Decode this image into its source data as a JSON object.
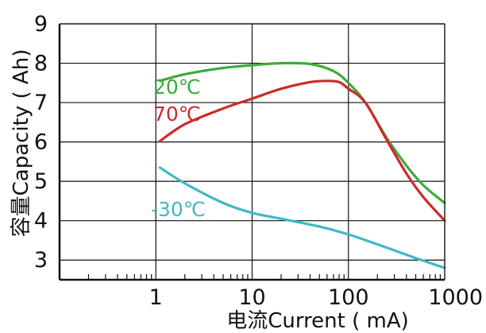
{
  "chart_data": {
    "type": "line",
    "title": "",
    "xlabel": "电流Current ( mA)",
    "ylabel": "容量Capacity ( Ah)",
    "xscale": "log",
    "xlim": [
      0.1,
      1000
    ],
    "ylim": [
      2.5,
      9
    ],
    "x_tick_values": [
      1,
      10,
      100,
      1000
    ],
    "x_tick_labels": [
      "1",
      "10",
      "100",
      "1000"
    ],
    "y_ticks": [
      3,
      4,
      5,
      6,
      7,
      8,
      9
    ],
    "grid": true,
    "series": [
      {
        "name": "20℃",
        "color": "#3daa3a",
        "x": [
          1.1,
          2,
          5,
          10,
          20,
          40,
          70,
          100,
          150,
          250,
          400,
          600,
          1000
        ],
        "y": [
          7.55,
          7.72,
          7.88,
          7.95,
          8.0,
          7.98,
          7.8,
          7.5,
          7.0,
          6.1,
          5.4,
          4.9,
          4.45
        ]
      },
      {
        "name": "70℃",
        "color": "#cc2a2a",
        "x": [
          1.1,
          2,
          5,
          10,
          20,
          40,
          60,
          80,
          100,
          150,
          250,
          400,
          600,
          1000
        ],
        "y": [
          6.02,
          6.45,
          6.85,
          7.1,
          7.35,
          7.52,
          7.55,
          7.52,
          7.35,
          7.0,
          6.05,
          5.2,
          4.6,
          4.0
        ]
      },
      {
        "name": "-30℃",
        "color": "#3fb8c8",
        "x": [
          1.1,
          2,
          5,
          10,
          20,
          50,
          100,
          200,
          500,
          1000
        ],
        "y": [
          5.35,
          4.95,
          4.45,
          4.2,
          4.05,
          3.85,
          3.65,
          3.4,
          3.05,
          2.8
        ]
      }
    ]
  }
}
